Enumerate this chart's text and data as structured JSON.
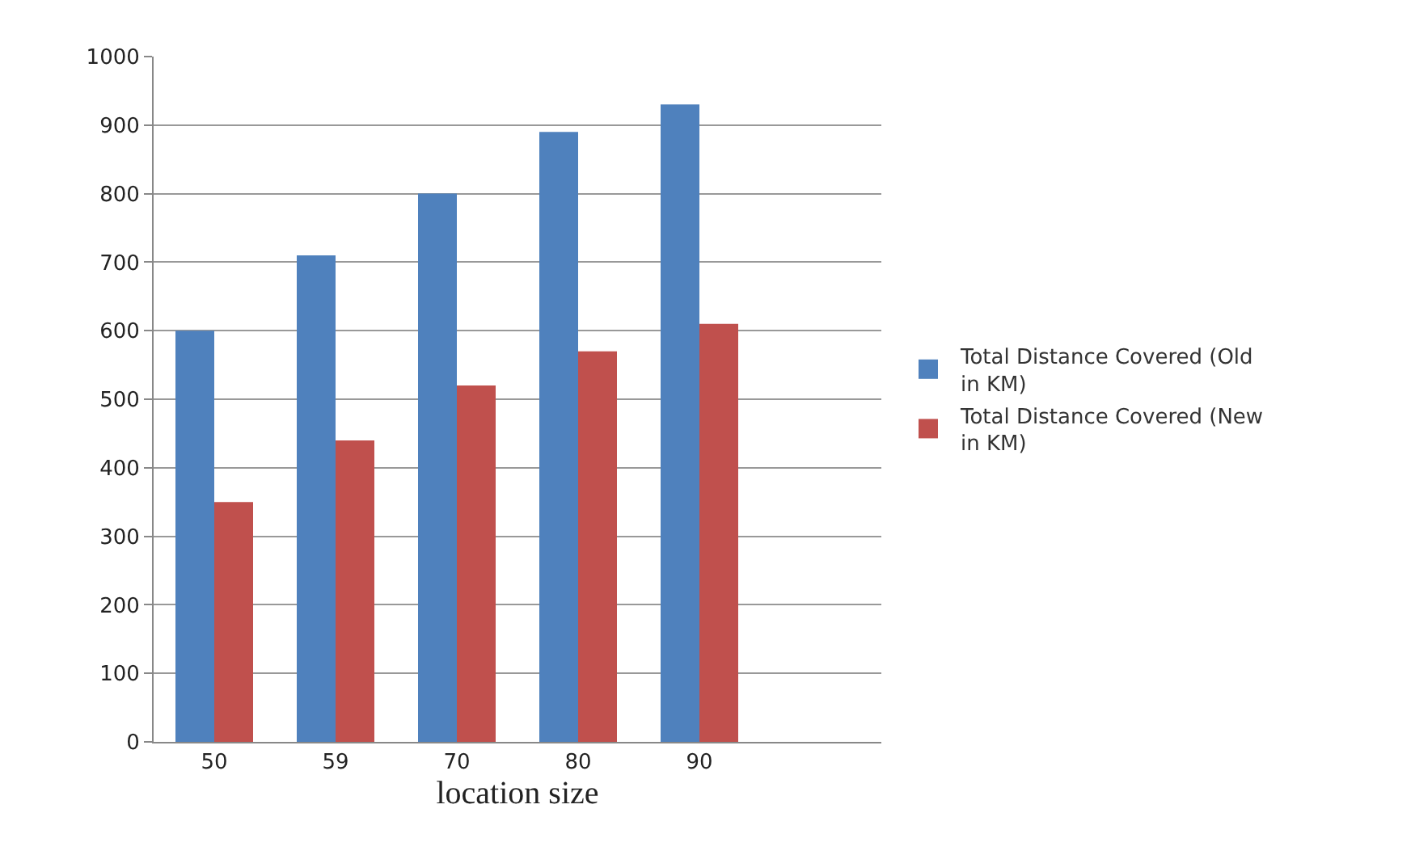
{
  "chart_data": {
    "type": "bar",
    "xlabel": "location size",
    "categories": [
      "50",
      "59",
      "70",
      "80",
      "90",
      null
    ],
    "series": [
      {
        "name": "Total Distance Covered (Old in KM)",
        "color": "#4f81bd",
        "values": [
          600,
          710,
          800,
          890,
          930,
          null
        ]
      },
      {
        "name": "Total Distance Covered (New in KM)",
        "color": "#c0504d",
        "values": [
          350,
          440,
          520,
          570,
          610,
          null
        ]
      }
    ],
    "ylim": [
      0,
      1000
    ],
    "yticks": [
      0,
      100,
      200,
      300,
      400,
      500,
      600,
      700,
      800,
      900,
      1000
    ],
    "grid": "y",
    "legend": "right"
  }
}
